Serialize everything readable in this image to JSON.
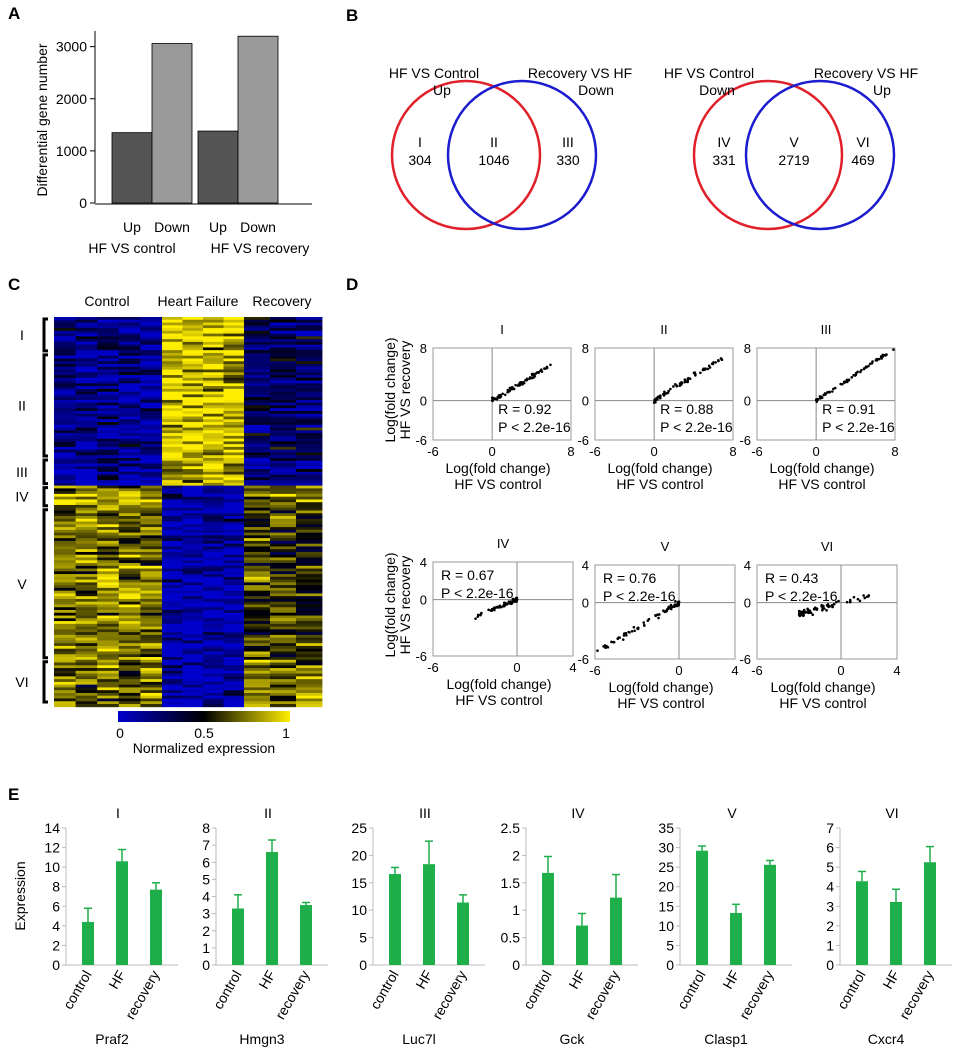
{
  "panel_labels": {
    "a": "A",
    "b": "B",
    "c": "C",
    "d": "D",
    "e": "E"
  },
  "chart_data": [
    {
      "panel": "A",
      "type": "bar",
      "ylabel": "Differential gene number",
      "ylim": [
        0,
        3300
      ],
      "yticks": [
        0,
        1000,
        2000,
        3000
      ],
      "categories": [
        "Up",
        "Down",
        "Up",
        "Down"
      ],
      "values": [
        1350,
        3060,
        1380,
        3200
      ],
      "bar_colors": [
        "#555555",
        "#9a9a9a",
        "#555555",
        "#9a9a9a"
      ],
      "groups": [
        "HF VS control",
        "HF VS recovery"
      ]
    },
    {
      "panel": "B",
      "type": "venn",
      "diagrams": [
        {
          "left_label": [
            "HF VS Control",
            "Up"
          ],
          "right_label": [
            "Recovery   VS HF",
            "Down"
          ],
          "regions": [
            {
              "name": "I",
              "value": "304"
            },
            {
              "name": "II",
              "value": "1046"
            },
            {
              "name": "III",
              "value": "330"
            }
          ]
        },
        {
          "left_label": [
            "HF VS Control",
            "Down"
          ],
          "right_label": [
            "Recovery   VS HF",
            "Up"
          ],
          "regions": [
            {
              "name": "IV",
              "value": "331"
            },
            {
              "name": "V",
              "value": "2719"
            },
            {
              "name": "VI",
              "value": "469"
            }
          ]
        }
      ],
      "colors": {
        "left": "#e0202a",
        "right": "#1c1ccf"
      }
    },
    {
      "panel": "C",
      "type": "heatmap",
      "columns": [
        "Control",
        "Heart Failure",
        "Recovery"
      ],
      "clusters": [
        {
          "name": "I",
          "frac": 0.09,
          "pattern": [
            0.15,
            0.9,
            0.3
          ]
        },
        {
          "name": "II",
          "frac": 0.27,
          "pattern": [
            0.15,
            0.9,
            0.25
          ]
        },
        {
          "name": "III",
          "frac": 0.07,
          "pattern": [
            0.12,
            0.85,
            0.15
          ]
        },
        {
          "name": "IV",
          "frac": 0.06,
          "pattern": [
            0.8,
            0.05,
            0.7
          ]
        },
        {
          "name": "V",
          "frac": 0.39,
          "pattern": [
            0.75,
            0.05,
            0.6
          ]
        },
        {
          "name": "VI",
          "frac": 0.12,
          "pattern": [
            0.7,
            0.1,
            0.75
          ]
        }
      ],
      "colorbar": {
        "ticks": [
          "0",
          "0.5",
          "1"
        ],
        "label": "Normalized expression",
        "colors": [
          "#0000cc",
          "#000000",
          "#ffee00"
        ]
      }
    },
    {
      "panel": "D",
      "type": "scatter",
      "ylabel": [
        "Log(fold change)",
        "HF VS recovery"
      ],
      "xlabel": [
        "Log(fold change)",
        "HF VS control"
      ],
      "subplots": [
        {
          "title": "I",
          "xlim": [
            -6,
            8
          ],
          "ylim": [
            -6,
            8
          ],
          "xticks": [
            "-6",
            "0",
            "8"
          ],
          "yticks": [
            "-6",
            "0",
            "8"
          ],
          "r": "R = 0.92",
          "p": "P < 2.2e-16",
          "stat_pos": "bottom",
          "slope": 0.9,
          "xrange": [
            0,
            6
          ],
          "noise": 0.6
        },
        {
          "title": "II",
          "xlim": [
            -6,
            8
          ],
          "ylim": [
            -6,
            8
          ],
          "xticks": [
            "-6",
            "0",
            "8"
          ],
          "yticks": [
            "-6",
            "0",
            "8"
          ],
          "r": "R = 0.88",
          "p": "P < 2.2e-16",
          "stat_pos": "bottom",
          "slope": 0.95,
          "xrange": [
            0,
            7
          ],
          "noise": 0.7
        },
        {
          "title": "III",
          "xlim": [
            -6,
            8
          ],
          "ylim": [
            -6,
            8
          ],
          "xticks": [
            "-6",
            "0",
            "8"
          ],
          "yticks": [
            "-6",
            "0",
            "8"
          ],
          "r": "R = 0.91",
          "p": "P < 2.2e-16",
          "stat_pos": "bottom",
          "slope": 1.0,
          "xrange": [
            0,
            8
          ],
          "noise": 0.5
        },
        {
          "title": "IV",
          "xlim": [
            -6,
            4
          ],
          "ylim": [
            -6,
            4
          ],
          "xticks": [
            "-6",
            "0",
            "4"
          ],
          "yticks": [
            "-6",
            "0",
            "4"
          ],
          "r": "R = 0.67",
          "p": "P < 2.2e-16",
          "stat_pos": "top",
          "slope": 0.6,
          "xrange": [
            -3,
            0
          ],
          "noise": 0.4
        },
        {
          "title": "V",
          "xlim": [
            -6,
            4
          ],
          "ylim": [
            -6,
            4
          ],
          "xticks": [
            "-6",
            "0",
            "4"
          ],
          "yticks": [
            "-6",
            "0",
            "4"
          ],
          "r": "R = 0.76",
          "p": "P < 2.2e-16",
          "stat_pos": "top",
          "slope": 0.9,
          "xrange": [
            -6,
            0
          ],
          "noise": 0.5
        },
        {
          "title": "VI",
          "xlim": [
            -6,
            4
          ],
          "ylim": [
            -6,
            4
          ],
          "xticks": [
            "-6",
            "0",
            "4"
          ],
          "yticks": [
            "-6",
            "0",
            "4"
          ],
          "r": "R = 0.43",
          "p": "P < 2.2e-16",
          "stat_pos": "top",
          "slope": 0.4,
          "xrange": [
            -3,
            2
          ],
          "noise": 0.7
        }
      ]
    },
    {
      "panel": "E",
      "type": "bar",
      "ylabel": "Expression",
      "categories": [
        "control",
        "HF",
        "recovery"
      ],
      "bar_color": "#1eae4a",
      "series": [
        {
          "title": "I",
          "gene": "Praf2",
          "ylim": [
            0,
            14
          ],
          "yticks": [
            0,
            2,
            4,
            6,
            8,
            10,
            12,
            14
          ],
          "values": [
            4.4,
            10.6,
            7.7
          ],
          "errors": [
            1.4,
            1.2,
            0.7
          ]
        },
        {
          "title": "II",
          "gene": "Hmgn3",
          "ylim": [
            0,
            8
          ],
          "yticks": [
            0,
            1,
            2,
            3,
            4,
            5,
            6,
            7,
            8
          ],
          "values": [
            3.3,
            6.6,
            3.5
          ],
          "errors": [
            0.8,
            0.7,
            0.15
          ]
        },
        {
          "title": "III",
          "gene": "Luc7l",
          "ylim": [
            0,
            25
          ],
          "yticks": [
            0,
            5,
            10,
            15,
            20,
            25
          ],
          "values": [
            16.6,
            18.4,
            11.4
          ],
          "errors": [
            1.2,
            4.2,
            1.4
          ]
        },
        {
          "title": "IV",
          "gene": "Gck",
          "ylim": [
            0,
            2.5
          ],
          "yticks": [
            0,
            0.5,
            1,
            1.5,
            2,
            2.5
          ],
          "values": [
            1.68,
            0.72,
            1.23
          ],
          "errors": [
            0.3,
            0.22,
            0.42
          ]
        },
        {
          "title": "V",
          "gene": "Clasp1",
          "ylim": [
            0,
            35
          ],
          "yticks": [
            0,
            5,
            10,
            15,
            20,
            25,
            30,
            35
          ],
          "values": [
            29.2,
            13.3,
            25.6
          ],
          "errors": [
            1.2,
            2.2,
            1.1
          ]
        },
        {
          "title": "VI",
          "gene": "Cxcr4",
          "ylim": [
            0,
            7
          ],
          "yticks": [
            0,
            1,
            2,
            3,
            4,
            5,
            6,
            7
          ],
          "values": [
            4.28,
            3.22,
            5.25
          ],
          "errors": [
            0.5,
            0.65,
            0.8
          ]
        }
      ]
    }
  ]
}
